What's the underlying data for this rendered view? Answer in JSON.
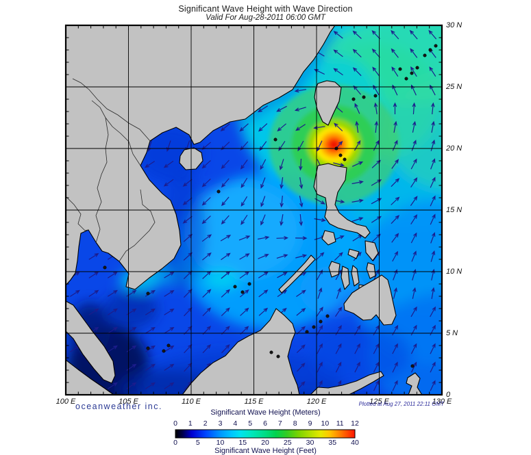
{
  "title": "Significant Wave Height with Wave Direction",
  "subtitle": "Valid For Aug-28-2011 06:00 GMT",
  "branding": "oceanweather inc.",
  "plotted_at": "Plotted at Aug 27, 2011 22:11 GMT",
  "map": {
    "lon_labels": [
      "100 E",
      "105 E",
      "110 E",
      "115 E",
      "120 E",
      "125 E",
      "130 E"
    ],
    "lat_labels": [
      "30 N",
      "25 N",
      "20 N",
      "15 N",
      "10 N",
      "5 N",
      "0"
    ],
    "lon_range_deg_e": [
      100,
      130
    ],
    "lat_range_deg_n": [
      0,
      30
    ],
    "grid_interval_deg": 5,
    "storm": {
      "center_lon_e": 121.4,
      "center_lat_n": 20.3,
      "peak_wave_height_m": 12
    },
    "land_color": "#c2c2c2",
    "arrow_color": "#1c1c8c",
    "arrows_meaning": "wave direction"
  },
  "legend": {
    "meters_title": "Significant Wave Height (Meters)",
    "feet_title": "Significant Wave Height (Feet)",
    "meters_ticks": [
      "0",
      "1",
      "2",
      "3",
      "4",
      "5",
      "6",
      "7",
      "8",
      "9",
      "10",
      "11",
      "12"
    ],
    "feet_ticks": [
      "0",
      "5",
      "10",
      "15",
      "20",
      "25",
      "30",
      "35",
      "40"
    ],
    "gradient_stops": [
      [
        0,
        "#000000"
      ],
      [
        0.04,
        "#00004a"
      ],
      [
        0.09,
        "#0000d0"
      ],
      [
        0.17,
        "#0046ff"
      ],
      [
        0.25,
        "#0096ff"
      ],
      [
        0.31,
        "#00c3ff"
      ],
      [
        0.36,
        "#00e2f0"
      ],
      [
        0.42,
        "#00e7c0"
      ],
      [
        0.5,
        "#00dd85"
      ],
      [
        0.56,
        "#00d24e"
      ],
      [
        0.62,
        "#33cc22"
      ],
      [
        0.69,
        "#7fd400"
      ],
      [
        0.75,
        "#b3df00"
      ],
      [
        0.81,
        "#e6e900"
      ],
      [
        0.86,
        "#ffc400"
      ],
      [
        0.92,
        "#ff7a00"
      ],
      [
        1,
        "#ff1400"
      ]
    ]
  },
  "chart_data": {
    "type": "heatmap",
    "title": "Significant Wave Height with Wave Direction",
    "valid_time": "Aug-28-2011 06:00 GMT",
    "colorbar_range_m": [
      0,
      12
    ],
    "colorbar_range_ft": [
      0,
      40
    ],
    "notable_feature": "Typhoon wave maximum (~12 m) centered near 121.4E 20.3N east of Luzon Strait; 2.5-5 m cyan/green swell over NW Pacific; 0.5-2.5 m blue seas over South China Sea; near-calm dark water in Malacca Strait and equatorial shelves"
  }
}
